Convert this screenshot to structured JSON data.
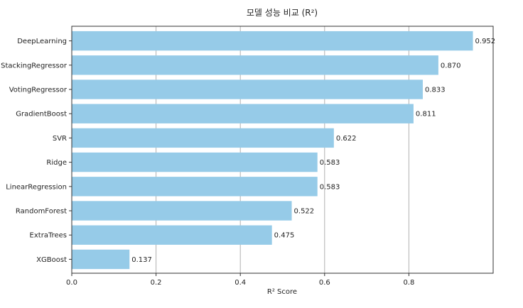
{
  "chart_data": {
    "type": "bar",
    "orientation": "horizontal",
    "title": "모델 성능 비교 (R²)",
    "xlabel": "R² Score",
    "ylabel": "",
    "xlim": [
      0,
      1.0
    ],
    "xticks": [
      "0.0",
      "0.2",
      "0.4",
      "0.6",
      "0.8"
    ],
    "grid": "vertical",
    "bar_color": "#96cbe8",
    "categories": [
      "DeepLearning",
      "StackingRegressor",
      "VotingRegressor",
      "GradientBoost",
      "SVR",
      "Ridge",
      "LinearRegression",
      "RandomForest",
      "ExtraTrees",
      "XGBoost"
    ],
    "values": [
      0.952,
      0.87,
      0.833,
      0.811,
      0.622,
      0.583,
      0.583,
      0.522,
      0.475,
      0.137
    ],
    "value_labels": [
      "0.952",
      "0.870",
      "0.833",
      "0.811",
      "0.622",
      "0.583",
      "0.583",
      "0.522",
      "0.475",
      "0.137"
    ]
  }
}
